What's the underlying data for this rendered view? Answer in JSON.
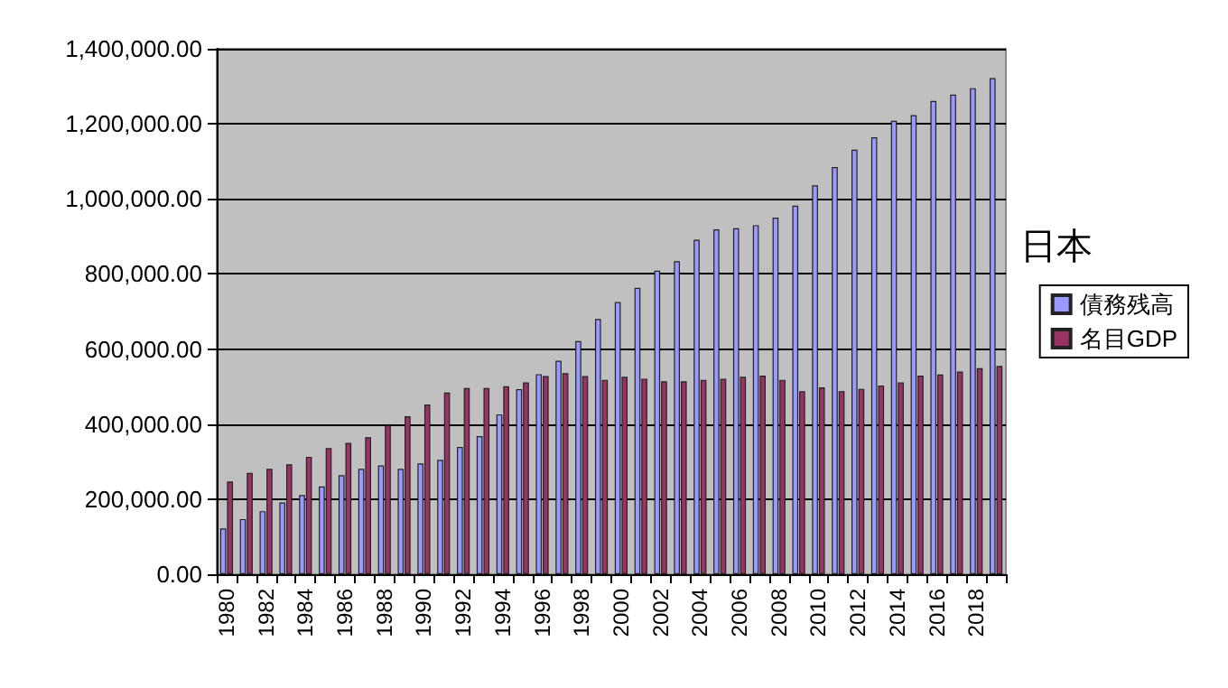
{
  "chart_data": {
    "type": "bar",
    "legend_title": "日本",
    "categories": [
      "1980",
      null,
      "1982",
      null,
      "1984",
      null,
      "1986",
      null,
      "1988",
      null,
      "1990",
      null,
      "1992",
      null,
      "1994",
      null,
      "1996",
      null,
      "1998",
      null,
      "2000",
      null,
      "2002",
      null,
      "2004",
      null,
      "2006",
      null,
      "2008",
      null,
      "2010",
      null,
      "2012",
      null,
      "2014",
      null,
      "2016",
      null,
      "2018",
      null
    ],
    "series": [
      {
        "name": "債務残高",
        "color": "#9999ff",
        "values": [
          122000,
          147000,
          168000,
          191000,
          211000,
          234000,
          264000,
          281000,
          290000,
          281000,
          295000,
          305000,
          339000,
          368000,
          426000,
          493000,
          533000,
          569000,
          621000,
          680000,
          725000,
          763000,
          809000,
          834000,
          891000,
          919000,
          922000,
          930000,
          950000,
          982000,
          1036000,
          1085000,
          1131000,
          1164000,
          1208000,
          1223000,
          1261000,
          1278000,
          1295000,
          1322000
        ]
      },
      {
        "name": "名目GDP",
        "color": "#993366",
        "values": [
          247000,
          270000,
          281000,
          293000,
          313000,
          336000,
          350000,
          365000,
          397000,
          421000,
          452000,
          484000,
          496000,
          496000,
          501000,
          511000,
          528000,
          536000,
          528000,
          518000,
          526000,
          521000,
          514000,
          514000,
          518000,
          521000,
          526000,
          529000,
          518000,
          488000,
          498000,
          488000,
          494000,
          503000,
          511000,
          529000,
          532000,
          540000,
          549000,
          555000
        ]
      }
    ],
    "ylim": [
      0,
      1400000
    ],
    "yticks": [
      {
        "value": 0,
        "label": "0.00"
      },
      {
        "value": 200000,
        "label": "200,000.00"
      },
      {
        "value": 400000,
        "label": "400,000.00"
      },
      {
        "value": 600000,
        "label": "600,000.00"
      },
      {
        "value": 800000,
        "label": "800,000.00"
      },
      {
        "value": 1000000,
        "label": "1,000,000.00"
      },
      {
        "value": 1200000,
        "label": "1,200,000.00"
      },
      {
        "value": 1400000,
        "label": "1,400,000.00"
      }
    ],
    "grid": "y",
    "legend": "right"
  }
}
